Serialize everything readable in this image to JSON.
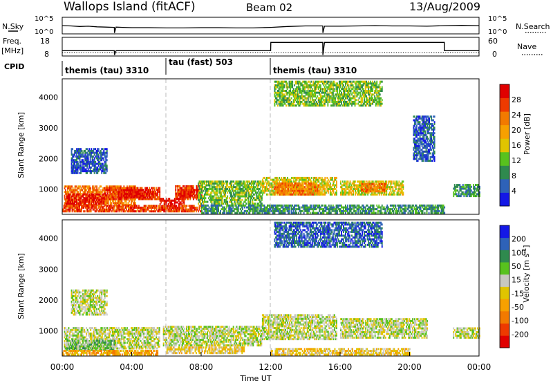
{
  "header": {
    "station": "Wallops Island (fitACF)",
    "beam": "Beam 02",
    "date": "13/Aug/2009"
  },
  "chart_data": [
    {
      "panel": "nsky-nsearch",
      "type": "line",
      "left_label": "N.Sky",
      "right_label": "N.Search",
      "left_ticks": [
        "10^5",
        "10^0"
      ],
      "right_ticks": [
        "10^5",
        "10^0"
      ],
      "ylim_log10": [
        0,
        5
      ],
      "x_hours": [
        0,
        0.5,
        1,
        1.5,
        2,
        2.5,
        3,
        3.01,
        3.1,
        3.5,
        4,
        5,
        6,
        7,
        8,
        9,
        10,
        11,
        12,
        13,
        14,
        15,
        15.01,
        15.1,
        16,
        17,
        18,
        19,
        20,
        21,
        22,
        23,
        24
      ],
      "n_sky_log10": [
        2.6,
        2.5,
        2.3,
        2.4,
        2.2,
        2.1,
        2.0,
        0.1,
        2.1,
        2.0,
        1.9,
        1.9,
        1.8,
        1.8,
        1.9,
        1.9,
        1.8,
        1.8,
        2.0,
        2.3,
        2.5,
        2.5,
        0.1,
        2.4,
        2.4,
        2.5,
        2.6,
        2.5,
        2.5,
        2.4,
        2.6,
        2.7,
        2.6
      ]
    },
    {
      "panel": "freq-nave",
      "type": "line",
      "left_label": "Freq. [MHz]",
      "right_label": "Nave",
      "left_ticks": [
        "18",
        "8"
      ],
      "right_ticks": [
        "60",
        "0"
      ],
      "ylim": [
        8,
        18
      ],
      "x_hours": [
        0,
        3,
        3.01,
        3.1,
        12,
        12.01,
        15,
        15.01,
        15.1,
        22,
        22.01,
        24
      ],
      "freq_mhz": [
        10.8,
        10.8,
        8.2,
        10.8,
        10.8,
        15.8,
        15.8,
        8.2,
        15.8,
        15.8,
        10.8,
        10.8
      ]
    },
    {
      "panel": "cpid",
      "type": "table",
      "label": "CPID",
      "segments": [
        {
          "start_hour": 0,
          "end_hour": 6,
          "name": "themis (tau) 3310"
        },
        {
          "start_hour": 6,
          "end_hour": 12,
          "name": "tau (fast) 503"
        },
        {
          "start_hour": 12,
          "end_hour": 24,
          "name": "themis (tau) 3310"
        }
      ]
    },
    {
      "panel": "power",
      "type": "heatmap",
      "ylabel": "Slant Range [km]",
      "yticks": [
        1000,
        2000,
        3000,
        4000
      ],
      "ylim": [
        180,
        4600
      ],
      "colorbar_label": "Power [dB]",
      "colorbar_ticks": [
        "4",
        "8",
        "12",
        "16",
        "20",
        "24",
        "28"
      ],
      "colorbar_colors": [
        "#1418e6",
        "#2e62b8",
        "#2f8a4e",
        "#58c21e",
        "#e0c400",
        "#f7a000",
        "#f27a00",
        "#ee3a00",
        "#e00000"
      ],
      "regions": [
        {
          "t0": 0.1,
          "t1": 4.2,
          "r0": 400,
          "r1": 1100,
          "level": 6
        },
        {
          "t0": 0.2,
          "t1": 2.4,
          "r0": 500,
          "r1": 850,
          "level": 8
        },
        {
          "t0": 2.4,
          "t1": 5.6,
          "r0": 650,
          "r1": 1050,
          "level": 7
        },
        {
          "t0": 3.2,
          "t1": 5.2,
          "r0": 700,
          "r1": 1000,
          "level": 8
        },
        {
          "t0": 0.5,
          "t1": 2.6,
          "r0": 1500,
          "r1": 2300,
          "level": 1
        },
        {
          "t0": 6.5,
          "t1": 8.0,
          "r0": 650,
          "r1": 1100,
          "level": 7
        },
        {
          "t0": 6.8,
          "t1": 7.8,
          "r0": 700,
          "r1": 950,
          "level": 8
        },
        {
          "t0": 5.6,
          "t1": 7.0,
          "r0": 300,
          "r1": 700,
          "level": 8
        },
        {
          "t0": 0.0,
          "t1": 8.0,
          "r0": 250,
          "r1": 450,
          "level": 7
        },
        {
          "t0": 7.8,
          "t1": 11.5,
          "r0": 500,
          "r1": 1250,
          "level": 3
        },
        {
          "t0": 11.5,
          "t1": 15.8,
          "r0": 800,
          "r1": 1400,
          "level": 4
        },
        {
          "t0": 12.2,
          "t1": 14.8,
          "r0": 800,
          "r1": 1200,
          "level": 6
        },
        {
          "t0": 16.0,
          "t1": 19.6,
          "r0": 800,
          "r1": 1250,
          "level": 4
        },
        {
          "t0": 17.2,
          "t1": 18.6,
          "r0": 900,
          "r1": 1150,
          "level": 6
        },
        {
          "t0": 22.5,
          "t1": 24.0,
          "r0": 750,
          "r1": 1150,
          "level": 2
        },
        {
          "t0": 8.0,
          "t1": 22.0,
          "r0": 200,
          "r1": 450,
          "level": 2
        },
        {
          "t0": 12.2,
          "t1": 18.4,
          "r0": 3700,
          "r1": 4500,
          "level": 3
        },
        {
          "t0": 20.2,
          "t1": 21.4,
          "r0": 1900,
          "r1": 3400,
          "level": 1
        }
      ]
    },
    {
      "panel": "velocity",
      "type": "heatmap",
      "ylabel": "Slant Range [km]",
      "yticks": [
        1000,
        2000,
        3000,
        4000
      ],
      "ylim": [
        180,
        4600
      ],
      "xlabel": "Time UT",
      "xticks": [
        "00:00",
        "04:00",
        "08:00",
        "12:00",
        "16:00",
        "20:00",
        "00:00"
      ],
      "colorbar_label": "Velocity [m s-1]",
      "colorbar_ticks": [
        "200",
        "100",
        "50",
        "15",
        "-15",
        "-50",
        "-100",
        "-200"
      ],
      "colorbar_colors": [
        "#1418e6",
        "#2e62b8",
        "#2f8a4e",
        "#58c21e",
        "#c8c8c0",
        "#e0c400",
        "#f7a000",
        "#f27a00",
        "#ee3a00",
        "#e00000"
      ],
      "regions": [
        {
          "t0": 0.1,
          "t1": 5.6,
          "r0": 400,
          "r1": 1100,
          "level": 4
        },
        {
          "t0": 0.2,
          "t1": 3.0,
          "r0": 350,
          "r1": 700,
          "level": 3
        },
        {
          "t0": 5.8,
          "t1": 11.5,
          "r0": 500,
          "r1": 1150,
          "level": 4
        },
        {
          "t0": 6.0,
          "t1": 10.5,
          "r0": 250,
          "r1": 450,
          "level": 5
        },
        {
          "t0": 0.0,
          "t1": 5.5,
          "r0": 200,
          "r1": 330,
          "level": 6
        },
        {
          "t0": 11.5,
          "t1": 15.8,
          "r0": 700,
          "r1": 1500,
          "level": 4
        },
        {
          "t0": 16.0,
          "t1": 21.0,
          "r0": 750,
          "r1": 1400,
          "level": 4
        },
        {
          "t0": 22.5,
          "t1": 24.0,
          "r0": 750,
          "r1": 1100,
          "level": 4
        },
        {
          "t0": 0.5,
          "t1": 2.6,
          "r0": 1500,
          "r1": 2300,
          "level": 4
        },
        {
          "t0": 12.2,
          "t1": 18.4,
          "r0": 3700,
          "r1": 4500,
          "level": 1
        },
        {
          "t0": 12.0,
          "t1": 20.0,
          "r0": 200,
          "r1": 400,
          "level": 5
        }
      ]
    }
  ]
}
